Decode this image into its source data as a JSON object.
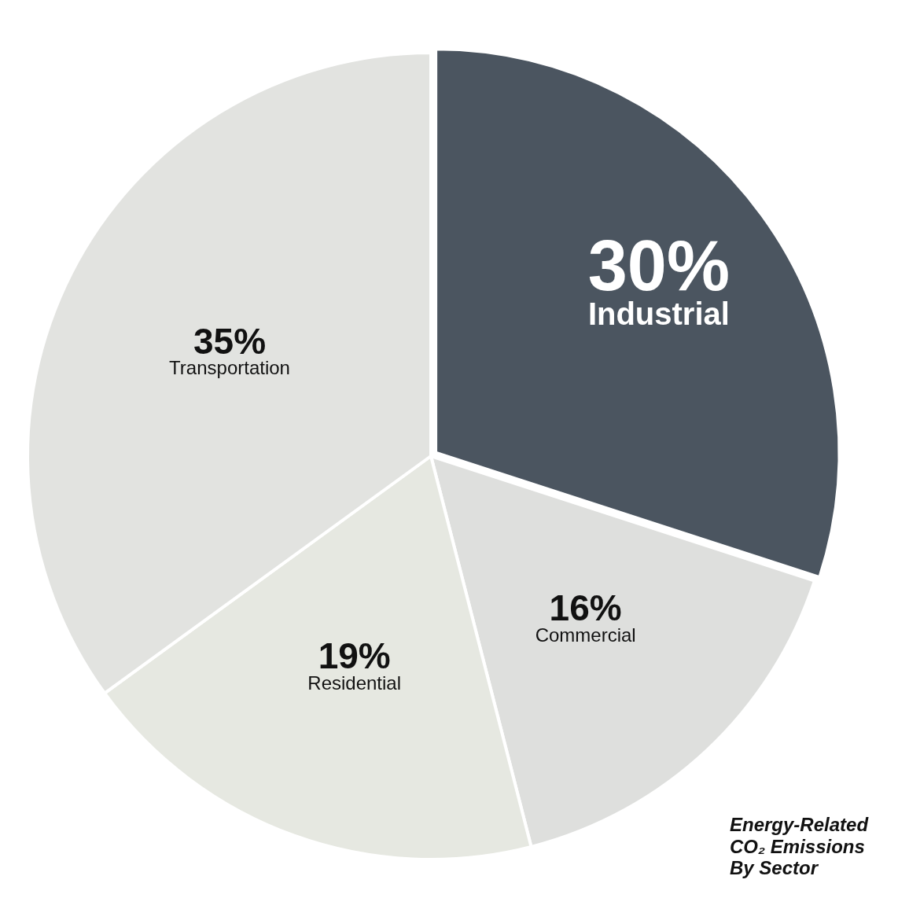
{
  "chart_data": {
    "type": "pie",
    "title": "Energy-Related CO₂ Emissions By Sector",
    "categories": [
      "Industrial",
      "Commercial",
      "Residential",
      "Transportation"
    ],
    "values": [
      30,
      16,
      19,
      35
    ],
    "value_labels": [
      "30%",
      "16%",
      "19%",
      "35%"
    ],
    "colors": [
      "#4b5560",
      "#dedfdd",
      "#e6e8e1",
      "#e2e3e0"
    ],
    "data_labels": true
  }
}
